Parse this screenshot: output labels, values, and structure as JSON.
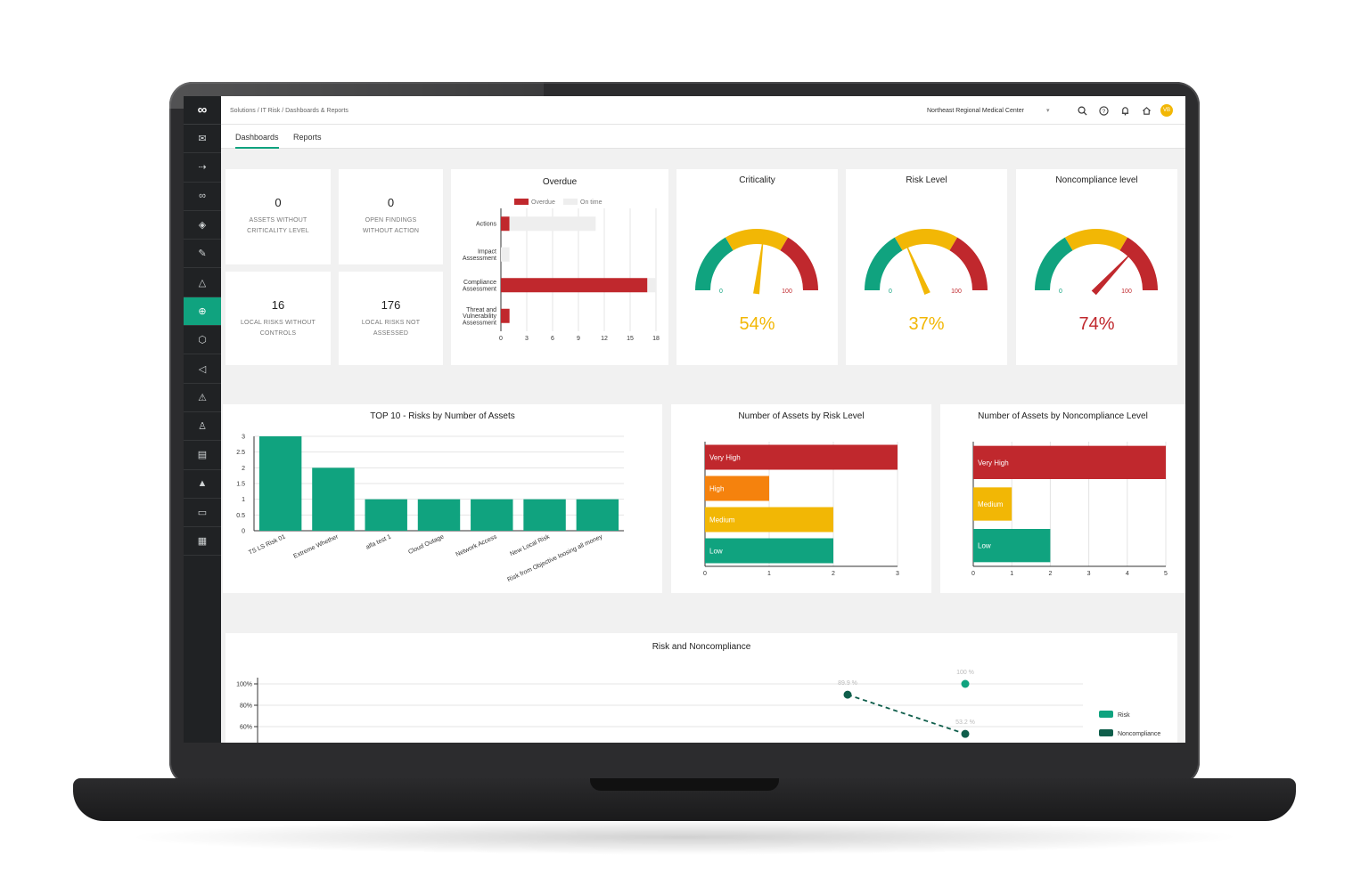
{
  "topbar": {
    "breadcrumb": "Solutions  /  IT Risk  /  Dashboards & Reports",
    "organization": "Northeast Regional Medical Center",
    "avatar_initials": "VB"
  },
  "tabs": [
    {
      "label": "Dashboards",
      "active": true
    },
    {
      "label": "Reports",
      "active": false
    }
  ],
  "sidebar": {
    "logo": "∞",
    "items": [
      {
        "icon": "mail-icon",
        "glyph": "✉"
      },
      {
        "icon": "signpost-icon",
        "glyph": "⇢"
      },
      {
        "icon": "infinity-icon",
        "glyph": "∞"
      },
      {
        "icon": "diamond-icon",
        "glyph": "◈"
      },
      {
        "icon": "pencil-icon",
        "glyph": "✎"
      },
      {
        "icon": "warning-icon",
        "glyph": "△"
      },
      {
        "icon": "globe-icon",
        "glyph": "⊕",
        "active": true
      },
      {
        "icon": "shield-icon",
        "glyph": "⬡"
      },
      {
        "icon": "megaphone-icon",
        "glyph": "◁"
      },
      {
        "icon": "alert-triangle-icon",
        "glyph": "⚠"
      },
      {
        "icon": "user-icon",
        "glyph": "♙"
      },
      {
        "icon": "table-icon",
        "glyph": "▤"
      },
      {
        "icon": "alert-filled-icon",
        "glyph": "▲"
      },
      {
        "icon": "folder-icon",
        "glyph": "▭"
      },
      {
        "icon": "report-icon",
        "glyph": "▦"
      }
    ]
  },
  "kpis": [
    {
      "value": "0",
      "label": "ASSETS WITHOUT CRITICALITY LEVEL"
    },
    {
      "value": "0",
      "label": "OPEN FINDINGS WITHOUT ACTION"
    },
    {
      "value": "16",
      "label": "LOCAL RISKS WITHOUT CONTROLS"
    },
    {
      "value": "176",
      "label": "LOCAL RISKS NOT ASSESSED"
    }
  ],
  "gauges": [
    {
      "title": "Criticality",
      "value": 54,
      "label": "54%",
      "min": "0",
      "max": "100",
      "color": "#f2b705"
    },
    {
      "title": "Risk Level",
      "value": 37,
      "label": "37%",
      "min": "0",
      "max": "100",
      "color": "#f2b705"
    },
    {
      "title": "Noncompliance level",
      "value": 74,
      "label": "74%",
      "min": "0",
      "max": "100",
      "color": "#c0282d"
    }
  ],
  "colors": {
    "green": "#10a37f",
    "yellow": "#f2b705",
    "red": "#c0282d",
    "orange": "#f5820d",
    "dark_green": "#0f5e4b",
    "light_gray": "#eeeeee"
  },
  "chart_data": [
    {
      "type": "bar",
      "orientation": "horizontal",
      "stacked": true,
      "title": "Overdue",
      "categories": [
        "Actions",
        "Impact Assessment",
        "Compliance Assessment",
        "Threat and Vulnerability Assessment"
      ],
      "series": [
        {
          "name": "Overdue",
          "values": [
            1,
            0,
            17,
            1
          ]
        },
        {
          "name": "On time",
          "values": [
            10,
            1,
            1,
            0
          ]
        }
      ],
      "xlim": [
        0,
        18
      ],
      "xticks": [
        "0",
        "3",
        "6",
        "9",
        "12",
        "15",
        "18"
      ],
      "legend": "top"
    },
    {
      "type": "bar",
      "title": "TOP 10 - Risks by Number of Assets",
      "categories": [
        "TS LS Risk 01",
        "Extreme Whether",
        "alfa test 1",
        "Cloud Outage",
        "Network Access",
        "New Local Risk",
        "Risk from Objective loosing all money"
      ],
      "values": [
        3,
        2,
        1,
        1,
        1,
        1,
        1
      ],
      "ylim": [
        0,
        3
      ],
      "yticks": [
        "0",
        "0.5",
        "1",
        "1.5",
        "2",
        "2.5",
        "3"
      ]
    },
    {
      "type": "bar",
      "orientation": "horizontal",
      "title": "Number of Assets by Risk Level",
      "categories": [
        "Very High",
        "High",
        "Medium",
        "Low"
      ],
      "values": [
        3,
        1,
        2,
        2
      ],
      "xlim": [
        0,
        3
      ],
      "xticks": [
        "0",
        "1",
        "2",
        "3"
      ]
    },
    {
      "type": "bar",
      "orientation": "horizontal",
      "title": "Number of Assets by Noncompliance Level",
      "categories": [
        "Very High",
        "Medium",
        "Low"
      ],
      "values": [
        5,
        1,
        2
      ],
      "xlim": [
        0,
        5
      ],
      "xticks": [
        "0",
        "1",
        "2",
        "3",
        "4",
        "5"
      ]
    },
    {
      "type": "line",
      "title": "Risk and Noncompliance",
      "yticks": [
        "100%",
        "80%",
        "60%"
      ],
      "series": [
        {
          "name": "Risk",
          "points": [
            {
              "value": 100,
              "label": "100 %"
            }
          ]
        },
        {
          "name": "Noncompliance",
          "points": [
            {
              "value": 89.9,
              "label": "89.9 %"
            },
            {
              "value": 53.2,
              "label": "53.2 %"
            }
          ]
        }
      ],
      "legend": "right"
    }
  ]
}
